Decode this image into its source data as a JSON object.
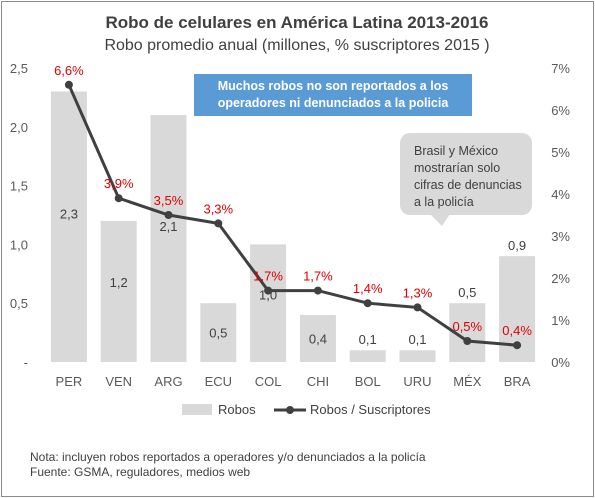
{
  "chart_data": {
    "type": "bar+line",
    "title": "Robo de celulares en América Latina 2013-2016",
    "subtitle": "Robo promedio anual (millones, % suscriptores 2015 )",
    "categories": [
      "PER",
      "VEN",
      "ARG",
      "ECU",
      "COL",
      "CHI",
      "BOL",
      "URU",
      "MÉX",
      "BRA"
    ],
    "series": [
      {
        "name": "Robos",
        "type": "bar",
        "axis": "left",
        "color": "#d9d9d9",
        "values": [
          2.3,
          1.2,
          2.1,
          0.5,
          1.0,
          0.4,
          0.1,
          0.1,
          0.5,
          0.9
        ],
        "labels": [
          "2,3",
          "1,2",
          "2,1",
          "0,5",
          "1,0",
          "0,4",
          "0,1",
          "0,1",
          "0,5",
          "0,9"
        ]
      },
      {
        "name": "Robos / Suscriptores",
        "type": "line",
        "axis": "right",
        "color": "#404040",
        "values": [
          6.6,
          3.9,
          3.5,
          3.3,
          1.7,
          1.7,
          1.4,
          1.3,
          0.5,
          0.4
        ],
        "labels": [
          "6,6%",
          "3,9%",
          "3,5%",
          "3,3%",
          "1,7%",
          "1,7%",
          "1,4%",
          "1,3%",
          "0,5%",
          "0,4%"
        ],
        "label_color": "#e00000"
      }
    ],
    "y_left": {
      "ylim": [
        0,
        2.5
      ],
      "ticks": [
        "-",
        "0,5",
        "1,0",
        "1,5",
        "2,0",
        "2,5"
      ]
    },
    "y_right": {
      "ylim": [
        0,
        7
      ],
      "ticks": [
        "0%",
        "1%",
        "2%",
        "3%",
        "4%",
        "5%",
        "6%",
        "7%"
      ]
    },
    "legend_position": "bottom",
    "annotations": {
      "blue_box": "Muchos robos no son reportados a los operadores ni denunciados a la policia",
      "callout": [
        "Brasil y México",
        "mostrarían  solo",
        "cifras de denuncias",
        "a la policía"
      ]
    }
  },
  "notes": {
    "line1": "Nota: incluyen robos reportados  a operadores  y/o denunciados  a la policía",
    "line2": "Fuente: GSMA, reguladores,  medios web"
  },
  "colors": {
    "bar": "#d9d9d9",
    "line": "#404040",
    "label_red": "#e00000",
    "blue_box": "#5b9bd5",
    "callout_box": "#d9d9d9"
  }
}
